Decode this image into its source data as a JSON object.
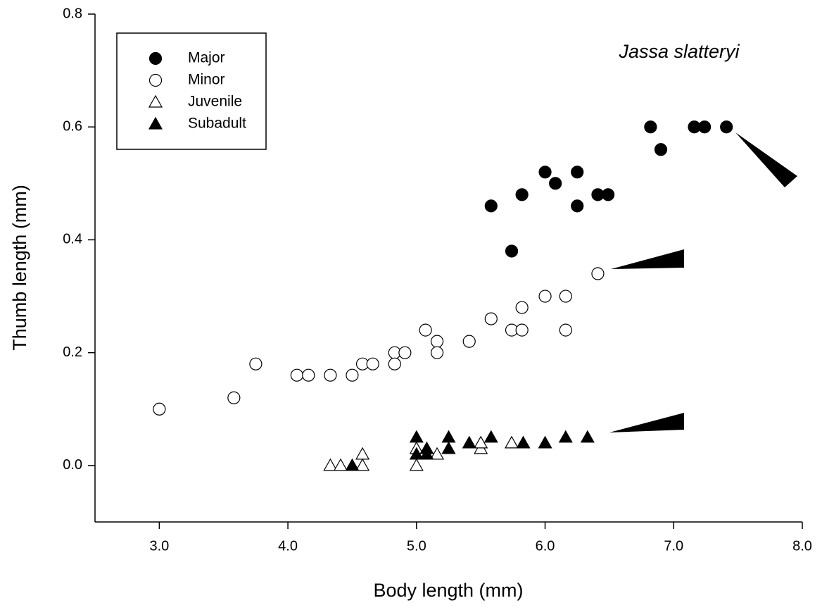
{
  "chart_data": {
    "type": "scatter",
    "title": "Jassa slatteryi",
    "x_label": "Body length (mm)",
    "y_label": "Thumb length (mm)",
    "xlim": [
      2.5,
      8.0
    ],
    "ylim": [
      -0.1,
      0.8
    ],
    "xticks": [
      {
        "value": 3,
        "label": "3.0"
      },
      {
        "value": 4,
        "label": "4.0"
      },
      {
        "value": 5,
        "label": "5.0"
      },
      {
        "value": 6,
        "label": "6.0"
      },
      {
        "value": 7,
        "label": "7.0"
      },
      {
        "value": 8,
        "label": "8.0"
      }
    ],
    "yticks": [
      {
        "value": 0,
        "label": "0.0"
      },
      {
        "value": 0.2,
        "label": "0.2"
      },
      {
        "value": 0.4,
        "label": "0.4"
      },
      {
        "value": 0.6,
        "label": "0.6"
      },
      {
        "value": 0.8,
        "label": "0.8"
      }
    ],
    "series": [
      {
        "name": "Major",
        "marker": "circle",
        "filled": true,
        "color": "#000000",
        "x": [
          5.58,
          5.74,
          5.82,
          6.0,
          6.08,
          6.25,
          6.25,
          6.41,
          6.49,
          6.82,
          6.9,
          7.16,
          7.24,
          7.41
        ],
        "values": [
          0.46,
          0.38,
          0.48,
          0.52,
          0.5,
          0.52,
          0.46,
          0.48,
          0.48,
          0.6,
          0.56,
          0.6,
          0.6,
          0.6
        ]
      },
      {
        "name": "Minor",
        "marker": "circle",
        "filled": false,
        "color": "#000000",
        "x": [
          3.0,
          3.58,
          3.75,
          4.07,
          4.16,
          4.33,
          4.5,
          4.58,
          4.66,
          4.83,
          4.83,
          4.91,
          5.07,
          5.16,
          5.16,
          5.41,
          5.58,
          5.74,
          5.82,
          5.82,
          6.0,
          6.16,
          6.16,
          6.41
        ],
        "values": [
          0.1,
          0.12,
          0.18,
          0.16,
          0.16,
          0.16,
          0.16,
          0.18,
          0.18,
          0.2,
          0.18,
          0.2,
          0.24,
          0.22,
          0.2,
          0.22,
          0.26,
          0.24,
          0.28,
          0.24,
          0.3,
          0.3,
          0.24,
          0.34
        ]
      },
      {
        "name": "Juvenile",
        "marker": "triangle",
        "filled": false,
        "color": "#000000",
        "x": [
          4.33,
          4.41,
          4.58,
          4.58,
          5.0,
          5.0,
          5.16,
          5.5,
          5.5,
          5.74
        ],
        "values": [
          0,
          0,
          0.02,
          0,
          0,
          0.03,
          0.02,
          0.03,
          0.04,
          0.04
        ]
      },
      {
        "name": "Subadult",
        "marker": "triangle",
        "filled": true,
        "color": "#000000",
        "x": [
          4.5,
          5.0,
          5.0,
          5.08,
          5.08,
          5.25,
          5.25,
          5.41,
          5.58,
          5.83,
          6.0,
          6.16,
          6.33
        ],
        "values": [
          0,
          0.05,
          0.02,
          0.03,
          0.02,
          0.05,
          0.03,
          0.04,
          0.05,
          0.04,
          0.04,
          0.05,
          0.05
        ]
      }
    ]
  }
}
